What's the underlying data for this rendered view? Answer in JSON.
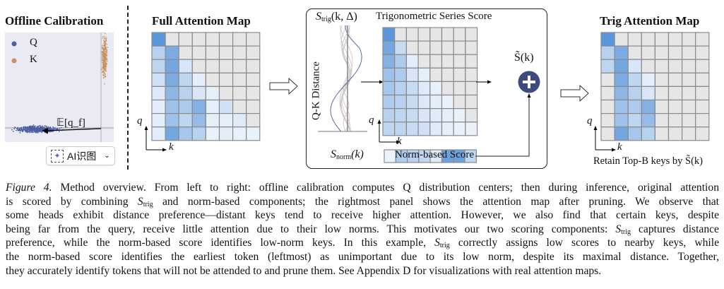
{
  "colors": {
    "gray": "#e6e6e6",
    "low": "#f1f6fd",
    "high": "#4a8bd6",
    "grid": "#8a8a8a",
    "q": "#4e5fa0",
    "k": "#c8935f",
    "plus": "#3d4a80"
  },
  "left": {
    "title": "Offline Calibration",
    "legend_q": "Q",
    "legend_k": "K",
    "annotation": "𝔼[q_f]",
    "ai_button": "AI识图"
  },
  "full": {
    "title": "Full Attention Map",
    "q": "q",
    "k": "k",
    "matrix": [
      [
        0.9,
        -1,
        -1,
        -1,
        -1,
        -1,
        -1,
        -1
      ],
      [
        0.35,
        0.7,
        -1,
        -1,
        -1,
        -1,
        -1,
        -1
      ],
      [
        0.3,
        0.75,
        0.15,
        -1,
        -1,
        -1,
        -1,
        -1
      ],
      [
        0.2,
        0.7,
        0.3,
        0.08,
        -1,
        -1,
        -1,
        -1
      ],
      [
        0.12,
        0.6,
        0.35,
        0.15,
        0.07,
        -1,
        -1,
        -1
      ],
      [
        0.08,
        0.5,
        0.4,
        0.65,
        0.07,
        0.2,
        -1,
        -1
      ],
      [
        0.08,
        0.5,
        0.3,
        0.55,
        0.07,
        0.07,
        0.1,
        -1
      ],
      [
        0.08,
        0.75,
        0.45,
        0.35,
        0.05,
        0.08,
        0.06,
        0.05
      ]
    ]
  },
  "middle": {
    "strig_label": "S",
    "strig_sub": "trig",
    "strig_args": "(k, Δ)",
    "axis_label": "Q-K Distance",
    "grid_title": "Trigonometric Series Score",
    "q": "q",
    "k": "k",
    "stilde": "S̃(k)",
    "snorm_label": "S",
    "snorm_sub": "norm",
    "snorm_args": "(k)",
    "norm_bar_label": "Norm-based Score",
    "matrix": [
      [
        0.9,
        -1,
        -1,
        -1,
        -1,
        -1,
        -1,
        -1
      ],
      [
        0.75,
        0.25,
        -1,
        -1,
        -1,
        -1,
        -1,
        -1
      ],
      [
        0.65,
        0.4,
        0.08,
        -1,
        -1,
        -1,
        -1,
        -1
      ],
      [
        0.5,
        0.4,
        0.15,
        0.07,
        -1,
        -1,
        -1,
        -1
      ],
      [
        0.45,
        0.35,
        0.25,
        0.1,
        0.06,
        -1,
        -1,
        -1
      ],
      [
        0.4,
        0.35,
        0.25,
        0.12,
        0.08,
        0.05,
        -1,
        -1
      ],
      [
        0.35,
        0.3,
        0.25,
        0.15,
        0.1,
        0.07,
        0.05,
        -1
      ],
      [
        0.3,
        0.3,
        0.25,
        0.2,
        0.1,
        0.07,
        0.05,
        0.05
      ]
    ],
    "norm": [
      0.03,
      0.4,
      0.35,
      0.3,
      0.1,
      0.8,
      0.8,
      0.3
    ]
  },
  "right": {
    "title": "Trig Attention Map",
    "q": "q",
    "k": "k",
    "footer": "Retain Top-B keys by S̃(k)",
    "matrix": [
      [
        0.9,
        -1,
        -1,
        -1,
        -1,
        -1,
        -1,
        -1
      ],
      [
        0.35,
        0.7,
        -1,
        -1,
        -1,
        -1,
        -1,
        -1
      ],
      [
        0.3,
        0.75,
        0.15,
        -1,
        -1,
        -1,
        -1,
        -1
      ],
      [
        -1,
        0.7,
        0.3,
        0.08,
        -1,
        -1,
        -1,
        -1
      ],
      [
        -1,
        0.6,
        0.35,
        0.15,
        -1,
        -1,
        -1,
        -1
      ],
      [
        -1,
        0.5,
        0.4,
        0.65,
        -1,
        -1,
        -1,
        -1
      ],
      [
        -1,
        0.5,
        0.3,
        0.55,
        -1,
        -1,
        -1,
        -1
      ],
      [
        -1,
        0.75,
        0.45,
        0.35,
        -1,
        -1,
        -1,
        -1
      ]
    ]
  },
  "caption": [
    [
      {
        "t": "Figure 4.",
        "i": true
      },
      {
        "t": " Method overview. From left to right: offline calibration computes Q distribution centers; then during inference, original attention"
      }
    ],
    [
      {
        "t": "is scored by combining "
      },
      {
        "m": "trig"
      },
      {
        "t": " and norm-based components; the rightmost panel shows the attention map after pruning. We observe that"
      }
    ],
    [
      {
        "t": "some heads exhibit distance preference—distant keys tend to receive higher attention. However, we also find that certain keys, despite"
      }
    ],
    [
      {
        "t": "being far from the query, receive little attention due to their low norms. This motivates our two scoring components: "
      },
      {
        "m": "trig"
      },
      {
        "t": " captures distance"
      }
    ],
    [
      {
        "t": "preference, while the norm-based score identifies low-norm keys. In this example, "
      },
      {
        "m": "trig"
      },
      {
        "t": " correctly assigns low scores to nearby keys, while"
      }
    ],
    [
      {
        "t": "the norm-based score identifies the earliest token (leftmost) as unimportant due to its low norm, despite its maximal distance. Together,"
      }
    ],
    [
      {
        "t": "they accurately identify tokens that will not be attended to and prune them. See Appendix D for visualizations with real attention maps."
      }
    ]
  ]
}
